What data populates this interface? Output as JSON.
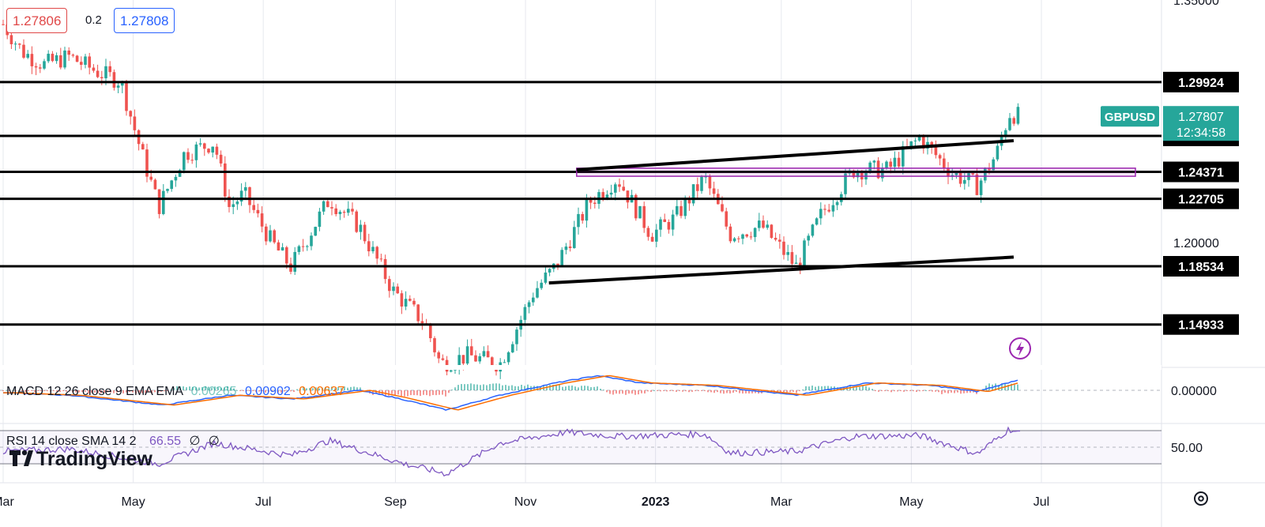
{
  "header": {
    "bid": "1.27806",
    "spread": "0.2",
    "ask": "1.27808"
  },
  "symbol": {
    "name": "GBPUSD",
    "last_price": "1.27807",
    "countdown": "12:34:58",
    "color": "#26a69a"
  },
  "brand": "TradingView",
  "macd": {
    "label": "MACD 12 26 close 9 EMA EMA",
    "histogram": "0.00265",
    "macd": "0.00902",
    "signal": "0.00637",
    "axis_label": "0.00000"
  },
  "rsi": {
    "label": "RSI 14 close SMA 14 2",
    "value": "66.55",
    "extra1": "∅",
    "extra2": "∅",
    "axis_label": "50.00"
  },
  "chart_data": {
    "type": "candlestick",
    "symbol": "GBPUSD",
    "x_ticks": [
      "Mar",
      "May",
      "Jul",
      "Sep",
      "Nov",
      "2023",
      "Mar",
      "May",
      "Jul"
    ],
    "y_ticks": [
      "1.35000",
      "1.20000"
    ],
    "ylim": [
      1.12,
      1.35
    ],
    "horizontal_levels": [
      1.29924,
      1.26596,
      1.24371,
      1.22705,
      1.18534,
      1.14933
    ],
    "horizontal_level_labels": [
      "1.29924",
      "1.26596",
      "1.24371",
      "1.22705",
      "1.18534",
      "1.14933"
    ],
    "trendlines": [
      {
        "from": {
          "x": "2022-11-12",
          "y": 1.175
        },
        "to": {
          "x": "2023-06-18",
          "y": 1.191
        }
      },
      {
        "from": {
          "x": "2022-11-25",
          "y": 1.245
        },
        "to": {
          "x": "2023-06-18",
          "y": 1.263
        }
      }
    ],
    "zone": {
      "from_x": "2022-11-25",
      "to_x": "2023-07-20",
      "y_low": 1.241,
      "y_high": 1.246
    },
    "price_path": [
      {
        "x": "2022-03-01",
        "y": 1.335
      },
      {
        "x": "2022-03-10",
        "y": 1.318
      },
      {
        "x": "2022-03-20",
        "y": 1.31
      },
      {
        "x": "2022-04-01",
        "y": 1.315
      },
      {
        "x": "2022-04-15",
        "y": 1.305
      },
      {
        "x": "2022-04-25",
        "y": 1.3
      },
      {
        "x": "2022-05-05",
        "y": 1.255
      },
      {
        "x": "2022-05-13",
        "y": 1.222
      },
      {
        "x": "2022-05-25",
        "y": 1.255
      },
      {
        "x": "2022-06-08",
        "y": 1.262
      },
      {
        "x": "2022-06-15",
        "y": 1.222
      },
      {
        "x": "2022-06-22",
        "y": 1.23
      },
      {
        "x": "2022-07-05",
        "y": 1.2
      },
      {
        "x": "2022-07-14",
        "y": 1.185
      },
      {
        "x": "2022-08-01",
        "y": 1.227
      },
      {
        "x": "2022-08-15",
        "y": 1.21
      },
      {
        "x": "2022-08-31",
        "y": 1.17
      },
      {
        "x": "2022-09-15",
        "y": 1.15
      },
      {
        "x": "2022-09-22",
        "y": 1.125
      },
      {
        "x": "2022-10-05",
        "y": 1.13
      },
      {
        "x": "2022-10-20",
        "y": 1.125
      },
      {
        "x": "2022-11-05",
        "y": 1.17
      },
      {
        "x": "2022-11-15",
        "y": 1.185
      },
      {
        "x": "2022-12-01",
        "y": 1.225
      },
      {
        "x": "2022-12-14",
        "y": 1.24
      },
      {
        "x": "2022-12-30",
        "y": 1.205
      },
      {
        "x": "2023-01-10",
        "y": 1.215
      },
      {
        "x": "2023-01-24",
        "y": 1.24
      },
      {
        "x": "2023-02-05",
        "y": 1.205
      },
      {
        "x": "2023-02-20",
        "y": 1.21
      },
      {
        "x": "2023-03-08",
        "y": 1.185
      },
      {
        "x": "2023-03-20",
        "y": 1.218
      },
      {
        "x": "2023-04-04",
        "y": 1.245
      },
      {
        "x": "2023-04-20",
        "y": 1.245
      },
      {
        "x": "2023-05-05",
        "y": 1.265
      },
      {
        "x": "2023-05-20",
        "y": 1.243
      },
      {
        "x": "2023-06-01",
        "y": 1.235
      },
      {
        "x": "2023-06-10",
        "y": 1.255
      },
      {
        "x": "2023-06-16",
        "y": 1.28
      },
      {
        "x": "2023-06-21",
        "y": 1.278
      }
    ],
    "macd_series": [
      {
        "x": "2022-03-01",
        "y": -0.002
      },
      {
        "x": "2022-04-01",
        "y": -0.004
      },
      {
        "x": "2022-05-15",
        "y": -0.012
      },
      {
        "x": "2022-06-15",
        "y": -0.004
      },
      {
        "x": "2022-07-15",
        "y": -0.007
      },
      {
        "x": "2022-08-15",
        "y": 0.0
      },
      {
        "x": "2022-09-01",
        "y": -0.006
      },
      {
        "x": "2022-09-25",
        "y": -0.016
      },
      {
        "x": "2022-10-20",
        "y": -0.004
      },
      {
        "x": "2022-11-15",
        "y": 0.006
      },
      {
        "x": "2022-12-05",
        "y": 0.012
      },
      {
        "x": "2022-12-25",
        "y": 0.006
      },
      {
        "x": "2023-01-25",
        "y": 0.004
      },
      {
        "x": "2023-03-08",
        "y": -0.004
      },
      {
        "x": "2023-04-10",
        "y": 0.006
      },
      {
        "x": "2023-05-10",
        "y": 0.004
      },
      {
        "x": "2023-06-01",
        "y": -0.001
      },
      {
        "x": "2023-06-21",
        "y": 0.00902
      }
    ],
    "rsi_series": [
      {
        "x": "2022-03-01",
        "y": 45
      },
      {
        "x": "2022-04-01",
        "y": 48
      },
      {
        "x": "2022-05-13",
        "y": 30
      },
      {
        "x": "2022-06-08",
        "y": 55
      },
      {
        "x": "2022-07-14",
        "y": 40
      },
      {
        "x": "2022-08-01",
        "y": 58
      },
      {
        "x": "2022-09-05",
        "y": 30
      },
      {
        "x": "2022-09-25",
        "y": 18
      },
      {
        "x": "2022-10-20",
        "y": 55
      },
      {
        "x": "2022-11-20",
        "y": 68
      },
      {
        "x": "2022-12-15",
        "y": 63
      },
      {
        "x": "2023-01-24",
        "y": 66
      },
      {
        "x": "2023-02-05",
        "y": 43
      },
      {
        "x": "2023-03-08",
        "y": 45
      },
      {
        "x": "2023-04-04",
        "y": 63
      },
      {
        "x": "2023-05-05",
        "y": 64
      },
      {
        "x": "2023-06-01",
        "y": 42
      },
      {
        "x": "2023-06-16",
        "y": 72
      },
      {
        "x": "2023-06-21",
        "y": 66.55
      }
    ]
  }
}
